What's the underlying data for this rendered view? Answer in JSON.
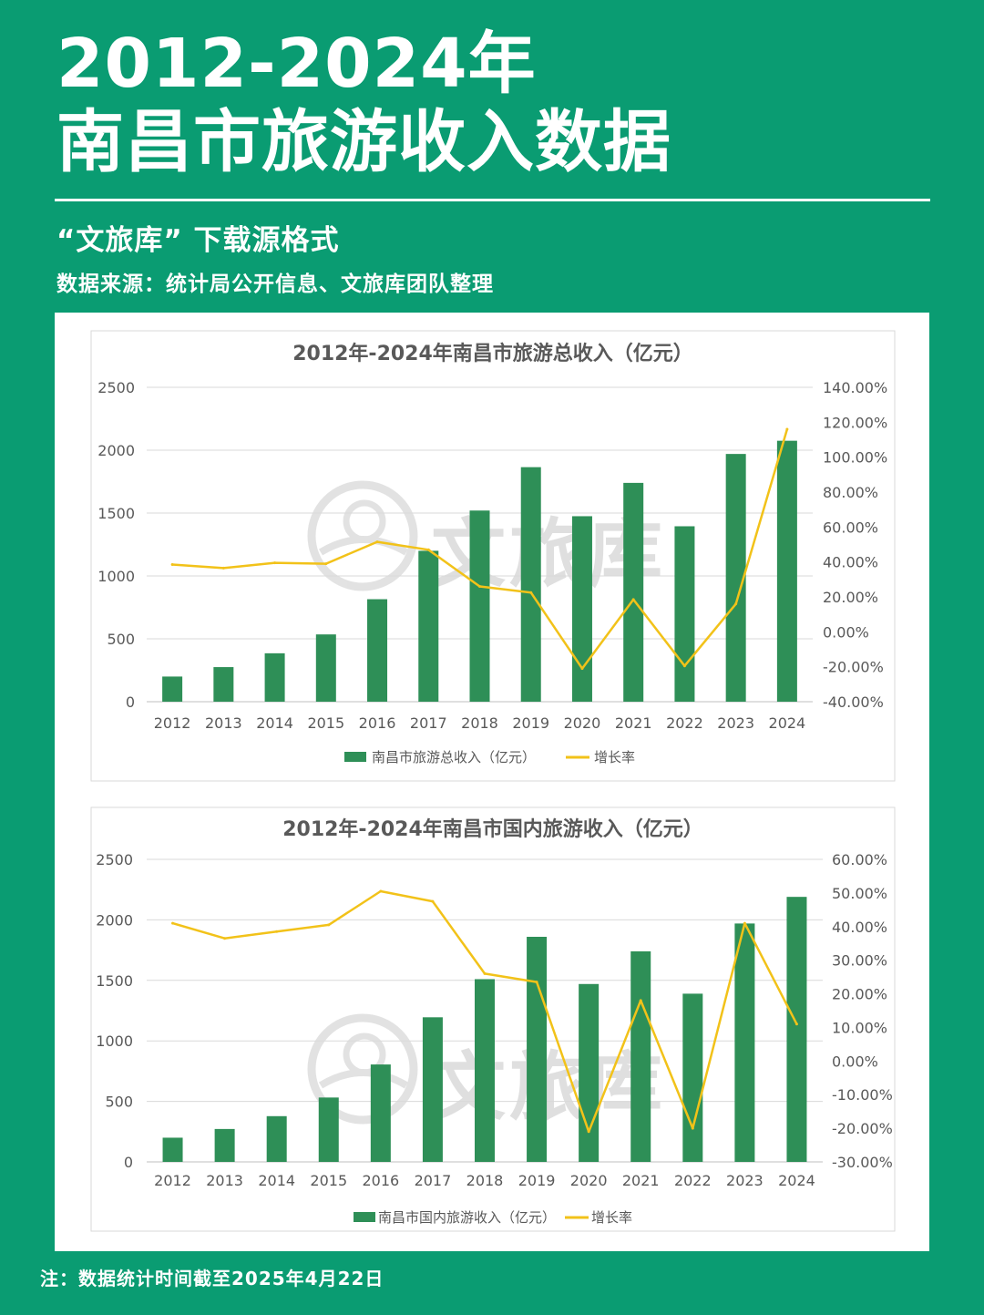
{
  "header": {
    "title_line1": "2012-2024年",
    "title_line2": "南昌市旅游收入数据",
    "subtitle": "“文旅库”  下载源格式",
    "source": "数据来源：统计局公开信息、文旅库团队整理"
  },
  "watermark": "文旅库",
  "footnote": "注：数据统计时间截至2025年4月22日",
  "colors": {
    "background": "#0a9c72",
    "bar": "#2e8f57",
    "line": "#f2c219",
    "grid": "#d9d9d9",
    "text": "#595959"
  },
  "chart_data": [
    {
      "type": "bar+line",
      "title": "2012年-2024年南昌市旅游总收入（亿元）",
      "categories": [
        "2012",
        "2013",
        "2014",
        "2015",
        "2016",
        "2017",
        "2018",
        "2019",
        "2020",
        "2021",
        "2022",
        "2023",
        "2024"
      ],
      "series": [
        {
          "name": "南昌市旅游总收入（亿元）",
          "type": "bar",
          "axis": "left",
          "values": [
            200,
            275,
            385,
            535,
            815,
            1200,
            1520,
            1865,
            1475,
            1740,
            1395,
            1970,
            2075
          ]
        },
        {
          "name": "增长率",
          "type": "line",
          "axis": "right",
          "values": [
            38.5,
            36.5,
            39.5,
            39,
            51.5,
            47,
            26,
            22.5,
            -21,
            18.5,
            -19.5,
            16,
            116
          ]
        }
      ],
      "y_left": {
        "min": 0,
        "max": 2500,
        "ticks": [
          "0",
          "500",
          "1000",
          "1500",
          "2000",
          "2500"
        ]
      },
      "y_right": {
        "min": -40,
        "max": 140,
        "ticks": [
          "-40.00%",
          "-20.00%",
          "0.00%",
          "20.00%",
          "40.00%",
          "60.00%",
          "80.00%",
          "100.00%",
          "120.00%",
          "140.00%"
        ]
      },
      "grid": true,
      "legend": "bottom"
    },
    {
      "type": "bar+line",
      "title": "2012年-2024年南昌市国内旅游收入（亿元）",
      "categories": [
        "2012",
        "2013",
        "2014",
        "2015",
        "2016",
        "2017",
        "2018",
        "2019",
        "2020",
        "2021",
        "2022",
        "2023",
        "2024"
      ],
      "series": [
        {
          "name": "南昌市国内旅游收入（亿元）",
          "type": "bar",
          "axis": "left",
          "values": [
            200,
            272,
            378,
            532,
            805,
            1195,
            1510,
            1860,
            1470,
            1740,
            1390,
            1970,
            2190
          ]
        },
        {
          "name": "增长率",
          "type": "line",
          "axis": "right",
          "values": [
            41,
            36.5,
            38.5,
            40.5,
            50.5,
            47.5,
            26,
            23.5,
            -21,
            18,
            -20,
            41,
            11
          ]
        }
      ],
      "y_left": {
        "min": 0,
        "max": 2500,
        "ticks": [
          "0",
          "500",
          "1000",
          "1500",
          "2000",
          "2500"
        ]
      },
      "y_right": {
        "min": -30,
        "max": 60,
        "ticks": [
          "-30.00%",
          "-20.00%",
          "-10.00%",
          "0.00%",
          "10.00%",
          "20.00%",
          "30.00%",
          "40.00%",
          "50.00%",
          "60.00%"
        ]
      },
      "grid": true,
      "legend": "bottom"
    }
  ]
}
